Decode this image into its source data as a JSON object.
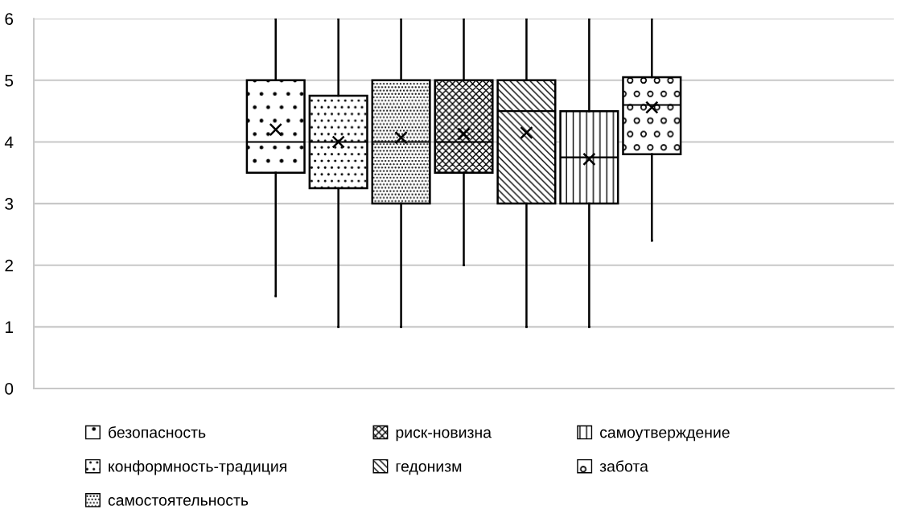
{
  "chart_data": {
    "type": "box",
    "categories": [
      null
    ],
    "ylim": [
      0,
      6
    ],
    "yticks": [
      0,
      1,
      2,
      3,
      4,
      5,
      6
    ],
    "grid": "y",
    "legend": "bottom",
    "tick_labels": "y",
    "marker": "cross",
    "series": [
      {
        "name": "безопасность",
        "color": "#000000",
        "boxes": [
          {
            "low": 1.5,
            "q1": 3.5,
            "median": 4,
            "q3": 5,
            "high": 6,
            "mean": 4.2
          }
        ]
      },
      {
        "name": "конформность-традиция",
        "color": "#000000",
        "boxes": [
          {
            "low": 1,
            "q1": 3.25,
            "median": 4,
            "q3": 4.75,
            "high": 6,
            "mean": 4.0
          }
        ]
      },
      {
        "name": "самостоятельность",
        "color": "#000000",
        "boxes": [
          {
            "low": 1,
            "q1": 3,
            "median": 4,
            "q3": 5,
            "high": 6,
            "mean": 4.07
          }
        ]
      },
      {
        "name": "риск-новизна",
        "color": "#000000",
        "boxes": [
          {
            "low": 2,
            "q1": 3.5,
            "median": 4,
            "q3": 5,
            "high": 6,
            "mean": 4.13
          }
        ]
      },
      {
        "name": "гедонизм",
        "color": "#000000",
        "boxes": [
          {
            "low": 1,
            "q1": 3,
            "median": 4.5,
            "q3": 5,
            "high": 6,
            "mean": 4.15
          }
        ]
      },
      {
        "name": "самоутверждение",
        "color": "#000000",
        "boxes": [
          {
            "low": 1,
            "q1": 3,
            "median": 3.75,
            "q3": 4.5,
            "high": 6,
            "mean": 3.72
          }
        ]
      },
      {
        "name": "забота",
        "color": "#000000",
        "boxes": [
          {
            "low": 2.4,
            "q1": 3.8,
            "median": 4.6,
            "q3": 5.05,
            "high": 6,
            "mean": 4.56
          }
        ]
      }
    ]
  }
}
